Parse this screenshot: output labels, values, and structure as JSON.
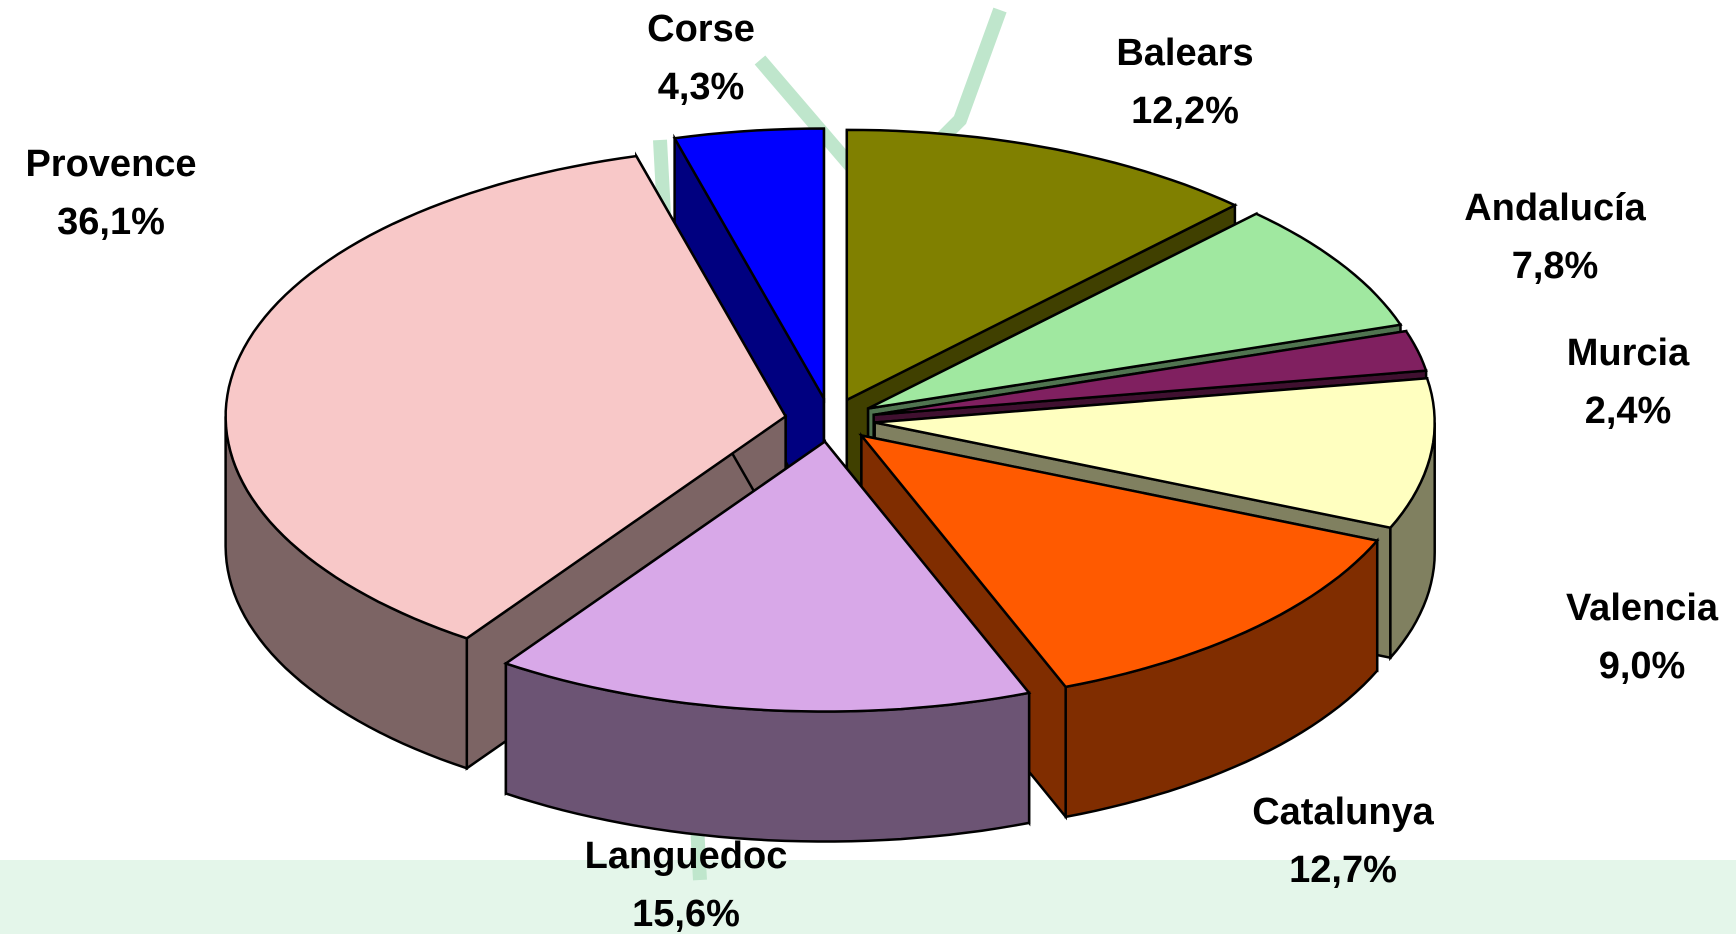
{
  "chart_data": {
    "type": "pie",
    "categories": [
      "Balears",
      "Andalucía",
      "Murcia",
      "Valencia",
      "Catalunya",
      "Languedoc",
      "Provence",
      "Corse"
    ],
    "values": [
      12.2,
      7.8,
      2.4,
      9.0,
      12.7,
      15.6,
      36.1,
      4.3
    ],
    "value_labels": [
      "12,2%",
      "7,8%",
      "2,4%",
      "9,0%",
      "12,7%",
      "15,6%",
      "36,1%",
      "4,3%"
    ],
    "colors": [
      "#808000",
      "#a0e8a0",
      "#802060",
      "#ffffc0",
      "#ff5a00",
      "#d8a8e8",
      "#f8c8c8",
      "#0000ff"
    ]
  }
}
